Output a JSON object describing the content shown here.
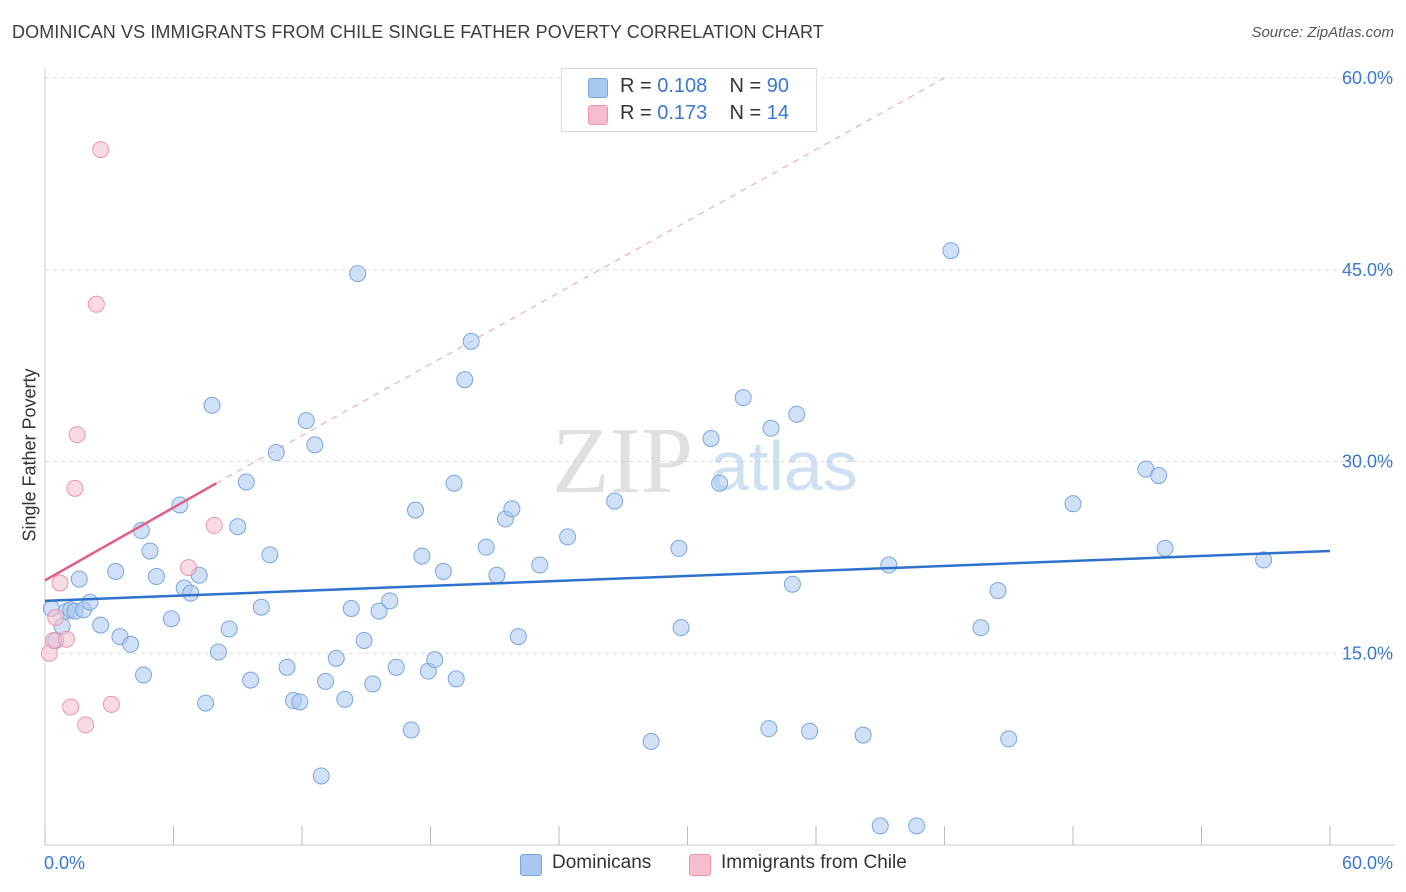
{
  "title": "DOMINICAN VS IMMIGRANTS FROM CHILE SINGLE FATHER POVERTY CORRELATION CHART",
  "source": "Source: ZipAtlas.com",
  "watermark": {
    "zip": "ZIP",
    "atlas": "atlas"
  },
  "legend_top": [
    {
      "r_label": "R = ",
      "r_value": "0.108",
      "n_label": "N = ",
      "n_value": "90",
      "color": "#a9c8f0",
      "border": "#7aa6e0"
    },
    {
      "r_label": "R = ",
      "r_value": "0.173",
      "n_label": "N = ",
      "n_value": "14",
      "color": "#f7bdcc",
      "border": "#ee94ad"
    }
  ],
  "legend_bottom": [
    {
      "label": "Dominicans",
      "color": "#a9c8f0",
      "border": "#7aa6e0"
    },
    {
      "label": "Immigrants from Chile",
      "color": "#f7bdcc",
      "border": "#ee94ad"
    }
  ],
  "colors": {
    "blue_line": "#2f72cc",
    "pink_line": "#e0608a",
    "tick_text": "#3b78d1",
    "grid": "#dcdcdc"
  },
  "chart_data": {
    "type": "scatter",
    "title": "DOMINICAN VS IMMIGRANTS FROM CHILE SINGLE FATHER POVERTY CORRELATION CHART",
    "xlabel": "",
    "ylabel": "Single Father Poverty",
    "xlim": [
      0,
      60
    ],
    "ylim": [
      0,
      60
    ],
    "x_tick_labels": [
      "0.0%",
      "60.0%"
    ],
    "y_ticks": [
      15,
      30,
      45,
      60
    ],
    "y_tick_labels": [
      "15.0%",
      "30.0%",
      "45.0%",
      "60.0%"
    ],
    "grid": "horizontal dashed",
    "legend_placement": "top-center",
    "series": [
      {
        "name": "Dominicans",
        "r": 0.108,
        "n": 90,
        "trend": {
          "x": [
            0,
            60
          ],
          "y": [
            19.1,
            23.0
          ]
        },
        "points": [
          [
            0.3,
            18.5
          ],
          [
            0.5,
            16.0
          ],
          [
            0.8,
            17.1
          ],
          [
            1.0,
            18.3
          ],
          [
            1.2,
            18.4
          ],
          [
            1.4,
            18.3
          ],
          [
            1.6,
            20.8
          ],
          [
            1.8,
            18.4
          ],
          [
            2.1,
            19.0
          ],
          [
            2.6,
            17.2
          ],
          [
            3.3,
            21.4
          ],
          [
            3.5,
            16.3
          ],
          [
            4.0,
            15.7
          ],
          [
            4.5,
            24.6
          ],
          [
            4.6,
            13.3
          ],
          [
            4.9,
            23.0
          ],
          [
            5.2,
            21.0
          ],
          [
            5.9,
            17.7
          ],
          [
            6.3,
            26.6
          ],
          [
            6.5,
            20.1
          ],
          [
            6.8,
            19.7
          ],
          [
            7.2,
            21.1
          ],
          [
            7.5,
            11.1
          ],
          [
            7.8,
            34.4
          ],
          [
            8.1,
            15.1
          ],
          [
            8.6,
            16.9
          ],
          [
            9.0,
            24.9
          ],
          [
            9.4,
            28.4
          ],
          [
            9.6,
            12.9
          ],
          [
            10.1,
            18.6
          ],
          [
            10.5,
            22.7
          ],
          [
            10.8,
            30.7
          ],
          [
            11.3,
            13.9
          ],
          [
            11.6,
            11.3
          ],
          [
            11.9,
            11.2
          ],
          [
            12.2,
            33.2
          ],
          [
            12.6,
            31.3
          ],
          [
            12.9,
            5.4
          ],
          [
            13.1,
            12.8
          ],
          [
            13.6,
            14.6
          ],
          [
            14.0,
            11.4
          ],
          [
            14.3,
            18.5
          ],
          [
            14.6,
            44.7
          ],
          [
            14.9,
            16.0
          ],
          [
            15.3,
            12.6
          ],
          [
            15.6,
            18.3
          ],
          [
            16.1,
            19.1
          ],
          [
            16.4,
            13.9
          ],
          [
            17.1,
            9.0
          ],
          [
            17.3,
            26.2
          ],
          [
            17.6,
            22.6
          ],
          [
            17.9,
            13.6
          ],
          [
            18.2,
            14.5
          ],
          [
            18.6,
            21.4
          ],
          [
            19.1,
            28.3
          ],
          [
            19.2,
            13.0
          ],
          [
            19.6,
            36.4
          ],
          [
            19.9,
            39.4
          ],
          [
            20.6,
            23.3
          ],
          [
            21.1,
            21.1
          ],
          [
            21.5,
            25.5
          ],
          [
            21.8,
            26.3
          ],
          [
            22.1,
            16.3
          ],
          [
            23.1,
            21.9
          ],
          [
            24.4,
            24.1
          ],
          [
            26.6,
            26.9
          ],
          [
            28.3,
            8.1
          ],
          [
            29.6,
            23.2
          ],
          [
            29.7,
            17.0
          ],
          [
            31.1,
            31.8
          ],
          [
            31.5,
            28.3
          ],
          [
            32.6,
            35.0
          ],
          [
            33.8,
            9.1
          ],
          [
            33.9,
            32.6
          ],
          [
            34.9,
            20.4
          ],
          [
            35.1,
            33.7
          ],
          [
            35.7,
            8.9
          ],
          [
            38.2,
            8.6
          ],
          [
            39.0,
            1.5
          ],
          [
            39.4,
            21.9
          ],
          [
            40.7,
            1.5
          ],
          [
            42.3,
            46.5
          ],
          [
            43.7,
            17.0
          ],
          [
            44.5,
            19.9
          ],
          [
            45.0,
            8.3
          ],
          [
            48.0,
            26.7
          ],
          [
            51.4,
            29.4
          ],
          [
            52.0,
            28.9
          ],
          [
            52.3,
            23.2
          ],
          [
            56.9,
            22.3
          ]
        ]
      },
      {
        "name": "Immigrants from Chile",
        "r": 0.173,
        "n": 14,
        "trend": {
          "x": [
            0,
            8
          ],
          "y": [
            20.7,
            28.3
          ],
          "extended_dashed_to": [
            42,
            60
          ]
        },
        "points": [
          [
            0.2,
            15.0
          ],
          [
            0.4,
            16.0
          ],
          [
            0.5,
            17.8
          ],
          [
            0.7,
            20.5
          ],
          [
            1.0,
            16.1
          ],
          [
            1.2,
            10.8
          ],
          [
            1.4,
            27.9
          ],
          [
            1.5,
            32.1
          ],
          [
            1.9,
            9.4
          ],
          [
            2.4,
            42.3
          ],
          [
            2.6,
            54.4
          ],
          [
            3.1,
            11.0
          ],
          [
            6.7,
            21.7
          ],
          [
            7.9,
            25.0
          ]
        ]
      }
    ]
  }
}
